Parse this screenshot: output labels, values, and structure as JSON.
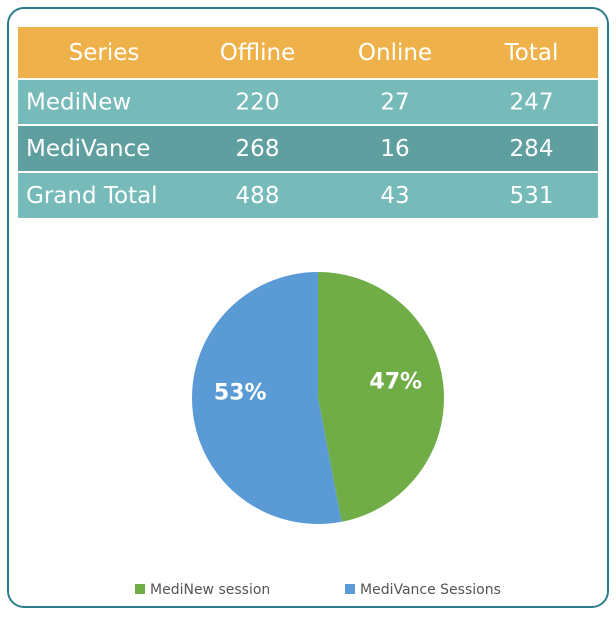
{
  "table": {
    "header": [
      "Series",
      "Offline",
      "Online",
      "Total"
    ],
    "rows": [
      [
        "MediNew",
        220,
        27,
        247
      ],
      [
        "MediVance",
        268,
        16,
        284
      ],
      [
        "Grand Total",
        488,
        43,
        531
      ]
    ]
  },
  "chart_data": {
    "type": "pie",
    "categories": [
      "MediNew session",
      "MediVance Sessions"
    ],
    "values": [
      47,
      53
    ],
    "value_labels": [
      "47%",
      "53%"
    ],
    "colors": [
      "#70ad47",
      "#5b9bd5"
    ],
    "legend": "bottom"
  }
}
